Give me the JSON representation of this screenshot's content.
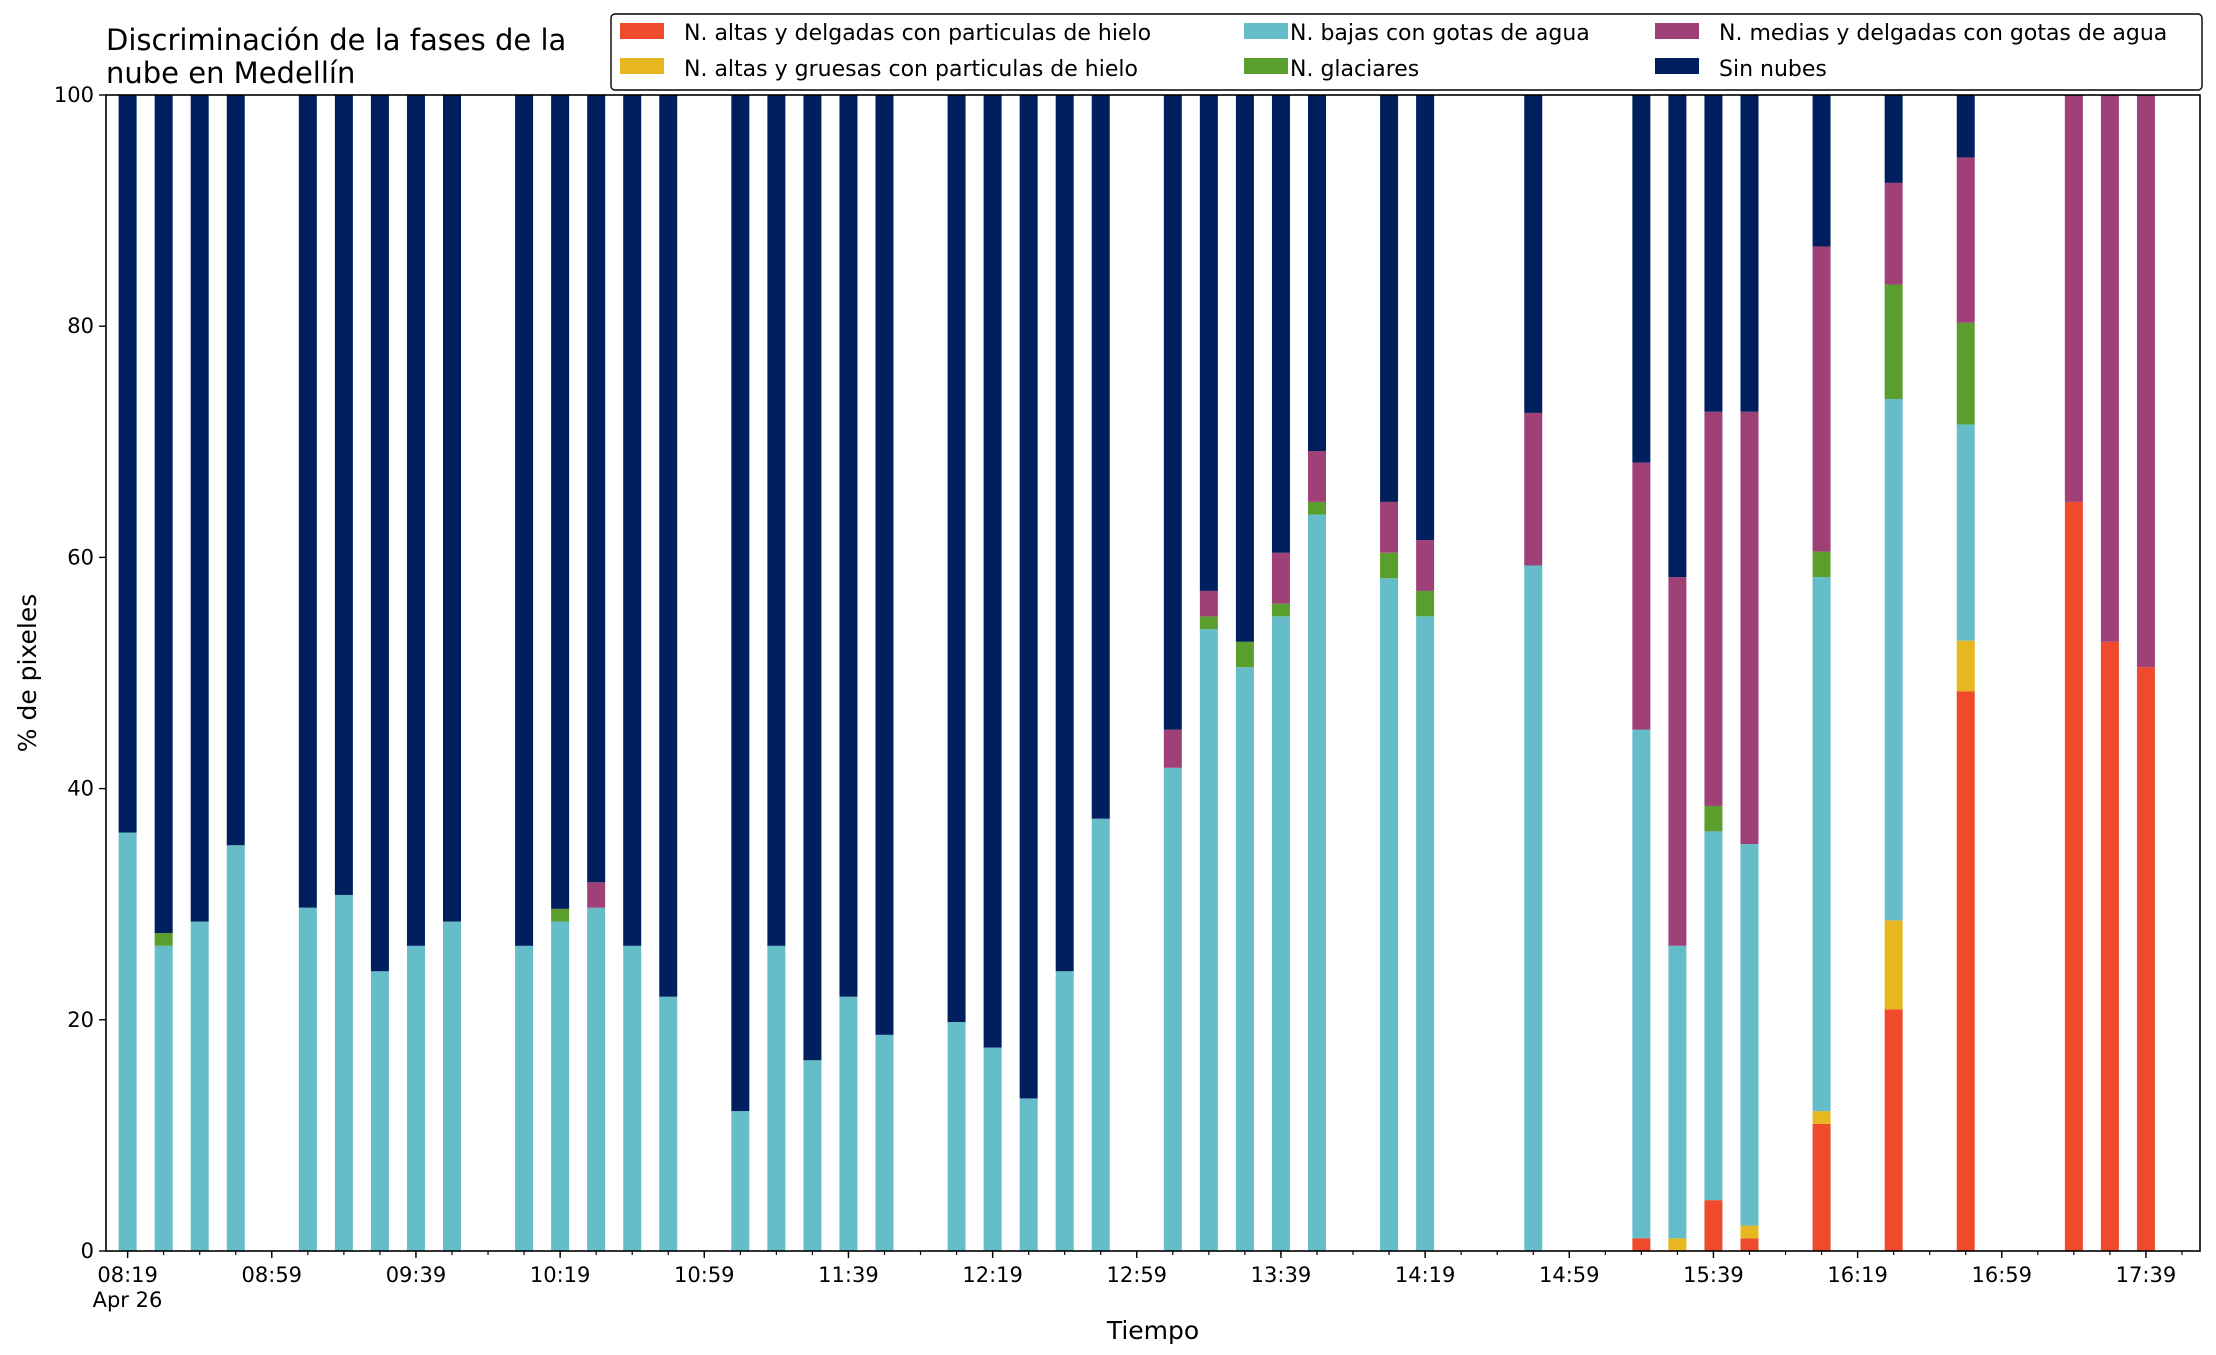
{
  "chart_data": {
    "type": "bar",
    "stacked": true,
    "title_lines": [
      "Discriminación de la fases de la",
      "nube en Medellín"
    ],
    "xlabel": "Tiempo",
    "ylabel": "% de pixeles",
    "ylim": [
      0,
      100
    ],
    "yticks": [
      0,
      20,
      40,
      60,
      80,
      100
    ],
    "xlim": [
      "08:13",
      "17:54"
    ],
    "x_tick_labels": [
      {
        "time": "08:19",
        "label": "08:19",
        "sublabel": "Apr 26"
      },
      {
        "time": "08:59",
        "label": "08:59"
      },
      {
        "time": "09:39",
        "label": "09:39"
      },
      {
        "time": "10:19",
        "label": "10:19"
      },
      {
        "time": "10:59",
        "label": "10:59"
      },
      {
        "time": "11:39",
        "label": "11:39"
      },
      {
        "time": "12:19",
        "label": "12:19"
      },
      {
        "time": "12:59",
        "label": "12:59"
      },
      {
        "time": "13:39",
        "label": "13:39"
      },
      {
        "time": "14:19",
        "label": "14:19"
      },
      {
        "time": "14:59",
        "label": "14:59"
      },
      {
        "time": "15:39",
        "label": "15:39"
      },
      {
        "time": "16:19",
        "label": "16:19"
      },
      {
        "time": "16:59",
        "label": "16:59"
      },
      {
        "time": "17:39",
        "label": "17:39"
      }
    ],
    "minor_tick_interval_minutes": 10,
    "grid": false,
    "legend_position": "top",
    "legend": [
      {
        "key": "altas_delgadas_hielo",
        "label": "N. altas y delgadas con particulas de hielo",
        "color": "#ee4a2b"
      },
      {
        "key": "altas_gruesas_hielo",
        "label": "N. altas y gruesas con particulas de hielo",
        "color": "#e6b71e"
      },
      {
        "key": "bajas_agua",
        "label": "N. bajas con gotas de agua",
        "color": "#66bdca"
      },
      {
        "key": "glaciares",
        "label": "N. glaciares",
        "color": "#5a9f2e"
      },
      {
        "key": "medias_delgadas_agua",
        "label": "N. medias y delgadas con gotas de agua",
        "color": "#9f4077"
      },
      {
        "key": "sin_nubes",
        "label": "Sin nubes",
        "color": "#001f5e"
      }
    ],
    "series_order": [
      "altas_delgadas_hielo",
      "altas_gruesas_hielo",
      "bajas_agua",
      "glaciares",
      "medias_delgadas_agua",
      "sin_nubes"
    ],
    "bars": [
      {
        "time": "08:19",
        "altas_delgadas_hielo": 0,
        "altas_gruesas_hielo": 0,
        "bajas_agua": 36.2,
        "glaciares": 0,
        "medias_delgadas_agua": 0,
        "sin_nubes": 63.8
      },
      {
        "time": "08:29",
        "altas_delgadas_hielo": 0,
        "altas_gruesas_hielo": 0,
        "bajas_agua": 26.4,
        "glaciares": 1.1,
        "medias_delgadas_agua": 0,
        "sin_nubes": 72.5
      },
      {
        "time": "08:39",
        "altas_delgadas_hielo": 0,
        "altas_gruesas_hielo": 0,
        "bajas_agua": 28.5,
        "glaciares": 0,
        "medias_delgadas_agua": 0,
        "sin_nubes": 71.5
      },
      {
        "time": "08:49",
        "altas_delgadas_hielo": 0,
        "altas_gruesas_hielo": 0,
        "bajas_agua": 35.1,
        "glaciares": 0,
        "medias_delgadas_agua": 0,
        "sin_nubes": 64.9
      },
      {
        "time": "09:09",
        "altas_delgadas_hielo": 0,
        "altas_gruesas_hielo": 0,
        "bajas_agua": 29.7,
        "glaciares": 0,
        "medias_delgadas_agua": 0,
        "sin_nubes": 70.3
      },
      {
        "time": "09:19",
        "altas_delgadas_hielo": 0,
        "altas_gruesas_hielo": 0,
        "bajas_agua": 30.8,
        "glaciares": 0,
        "medias_delgadas_agua": 0,
        "sin_nubes": 69.2
      },
      {
        "time": "09:29",
        "altas_delgadas_hielo": 0,
        "altas_gruesas_hielo": 0,
        "bajas_agua": 24.2,
        "glaciares": 0,
        "medias_delgadas_agua": 0,
        "sin_nubes": 75.8
      },
      {
        "time": "09:39",
        "altas_delgadas_hielo": 0,
        "altas_gruesas_hielo": 0,
        "bajas_agua": 26.4,
        "glaciares": 0,
        "medias_delgadas_agua": 0,
        "sin_nubes": 73.6
      },
      {
        "time": "09:49",
        "altas_delgadas_hielo": 0,
        "altas_gruesas_hielo": 0,
        "bajas_agua": 28.5,
        "glaciares": 0,
        "medias_delgadas_agua": 0,
        "sin_nubes": 71.5
      },
      {
        "time": "10:09",
        "altas_delgadas_hielo": 0,
        "altas_gruesas_hielo": 0,
        "bajas_agua": 26.4,
        "glaciares": 0,
        "medias_delgadas_agua": 0,
        "sin_nubes": 73.6
      },
      {
        "time": "10:19",
        "altas_delgadas_hielo": 0,
        "altas_gruesas_hielo": 0,
        "bajas_agua": 28.5,
        "glaciares": 1.1,
        "medias_delgadas_agua": 0,
        "sin_nubes": 70.4
      },
      {
        "time": "10:29",
        "altas_delgadas_hielo": 0,
        "altas_gruesas_hielo": 0,
        "bajas_agua": 29.7,
        "glaciares": 0,
        "medias_delgadas_agua": 2.2,
        "sin_nubes": 68.1
      },
      {
        "time": "10:39",
        "altas_delgadas_hielo": 0,
        "altas_gruesas_hielo": 0,
        "bajas_agua": 26.4,
        "glaciares": 0,
        "medias_delgadas_agua": 0,
        "sin_nubes": 73.6
      },
      {
        "time": "10:49",
        "altas_delgadas_hielo": 0,
        "altas_gruesas_hielo": 0,
        "bajas_agua": 22.0,
        "glaciares": 0,
        "medias_delgadas_agua": 0,
        "sin_nubes": 78.0
      },
      {
        "time": "11:09",
        "altas_delgadas_hielo": 0,
        "altas_gruesas_hielo": 0,
        "bajas_agua": 12.1,
        "glaciares": 0,
        "medias_delgadas_agua": 0,
        "sin_nubes": 87.9
      },
      {
        "time": "11:19",
        "altas_delgadas_hielo": 0,
        "altas_gruesas_hielo": 0,
        "bajas_agua": 26.4,
        "glaciares": 0,
        "medias_delgadas_agua": 0,
        "sin_nubes": 73.6
      },
      {
        "time": "11:29",
        "altas_delgadas_hielo": 0,
        "altas_gruesas_hielo": 0,
        "bajas_agua": 16.5,
        "glaciares": 0,
        "medias_delgadas_agua": 0,
        "sin_nubes": 83.5
      },
      {
        "time": "11:39",
        "altas_delgadas_hielo": 0,
        "altas_gruesas_hielo": 0,
        "bajas_agua": 22.0,
        "glaciares": 0,
        "medias_delgadas_agua": 0,
        "sin_nubes": 78.0
      },
      {
        "time": "11:49",
        "altas_delgadas_hielo": 0,
        "altas_gruesas_hielo": 0,
        "bajas_agua": 18.7,
        "glaciares": 0,
        "medias_delgadas_agua": 0,
        "sin_nubes": 81.3
      },
      {
        "time": "12:09",
        "altas_delgadas_hielo": 0,
        "altas_gruesas_hielo": 0,
        "bajas_agua": 19.8,
        "glaciares": 0,
        "medias_delgadas_agua": 0,
        "sin_nubes": 80.2
      },
      {
        "time": "12:19",
        "altas_delgadas_hielo": 0,
        "altas_gruesas_hielo": 0,
        "bajas_agua": 17.6,
        "glaciares": 0,
        "medias_delgadas_agua": 0,
        "sin_nubes": 82.4
      },
      {
        "time": "12:29",
        "altas_delgadas_hielo": 0,
        "altas_gruesas_hielo": 0,
        "bajas_agua": 13.2,
        "glaciares": 0,
        "medias_delgadas_agua": 0,
        "sin_nubes": 86.8
      },
      {
        "time": "12:39",
        "altas_delgadas_hielo": 0,
        "altas_gruesas_hielo": 0,
        "bajas_agua": 24.2,
        "glaciares": 0,
        "medias_delgadas_agua": 0,
        "sin_nubes": 75.8
      },
      {
        "time": "12:49",
        "altas_delgadas_hielo": 0,
        "altas_gruesas_hielo": 0,
        "bajas_agua": 37.4,
        "glaciares": 0,
        "medias_delgadas_agua": 0,
        "sin_nubes": 62.6
      },
      {
        "time": "13:09",
        "altas_delgadas_hielo": 0,
        "altas_gruesas_hielo": 0,
        "bajas_agua": 41.8,
        "glaciares": 0,
        "medias_delgadas_agua": 3.3,
        "sin_nubes": 54.9
      },
      {
        "time": "13:19",
        "altas_delgadas_hielo": 0,
        "altas_gruesas_hielo": 0,
        "bajas_agua": 53.8,
        "glaciares": 1.1,
        "medias_delgadas_agua": 2.2,
        "sin_nubes": 42.9
      },
      {
        "time": "13:29",
        "altas_delgadas_hielo": 0,
        "altas_gruesas_hielo": 0,
        "bajas_agua": 50.5,
        "glaciares": 2.2,
        "medias_delgadas_agua": 0,
        "sin_nubes": 47.3
      },
      {
        "time": "13:39",
        "altas_delgadas_hielo": 0,
        "altas_gruesas_hielo": 0,
        "bajas_agua": 54.9,
        "glaciares": 1.1,
        "medias_delgadas_agua": 4.4,
        "sin_nubes": 39.6
      },
      {
        "time": "13:49",
        "altas_delgadas_hielo": 0,
        "altas_gruesas_hielo": 0,
        "bajas_agua": 63.7,
        "glaciares": 1.1,
        "medias_delgadas_agua": 4.4,
        "sin_nubes": 30.8
      },
      {
        "time": "14:09",
        "altas_delgadas_hielo": 0,
        "altas_gruesas_hielo": 0,
        "bajas_agua": 58.2,
        "glaciares": 2.2,
        "medias_delgadas_agua": 4.4,
        "sin_nubes": 35.2
      },
      {
        "time": "14:19",
        "altas_delgadas_hielo": 0,
        "altas_gruesas_hielo": 0,
        "bajas_agua": 54.9,
        "glaciares": 2.2,
        "medias_delgadas_agua": 4.4,
        "sin_nubes": 38.5
      },
      {
        "time": "14:49",
        "altas_delgadas_hielo": 0,
        "altas_gruesas_hielo": 0,
        "bajas_agua": 59.3,
        "glaciares": 0,
        "medias_delgadas_agua": 13.2,
        "sin_nubes": 27.5
      },
      {
        "time": "15:19",
        "altas_delgadas_hielo": 1.1,
        "altas_gruesas_hielo": 0,
        "bajas_agua": 44.0,
        "glaciares": 0,
        "medias_delgadas_agua": 23.1,
        "sin_nubes": 31.8
      },
      {
        "time": "15:29",
        "altas_delgadas_hielo": 0,
        "altas_gruesas_hielo": 1.1,
        "bajas_agua": 25.3,
        "glaciares": 0,
        "medias_delgadas_agua": 31.9,
        "sin_nubes": 41.7
      },
      {
        "time": "15:39",
        "altas_delgadas_hielo": 4.4,
        "altas_gruesas_hielo": 0,
        "bajas_agua": 31.9,
        "glaciares": 2.2,
        "medias_delgadas_agua": 34.1,
        "sin_nubes": 27.4
      },
      {
        "time": "15:49",
        "altas_delgadas_hielo": 1.1,
        "altas_gruesas_hielo": 1.1,
        "bajas_agua": 33.0,
        "glaciares": 0,
        "medias_delgadas_agua": 37.4,
        "sin_nubes": 27.4
      },
      {
        "time": "16:09",
        "altas_delgadas_hielo": 11.0,
        "altas_gruesas_hielo": 1.1,
        "bajas_agua": 46.2,
        "glaciares": 2.2,
        "medias_delgadas_agua": 26.4,
        "sin_nubes": 13.1
      },
      {
        "time": "16:29",
        "altas_delgadas_hielo": 20.9,
        "altas_gruesas_hielo": 7.7,
        "bajas_agua": 45.1,
        "glaciares": 9.9,
        "medias_delgadas_agua": 8.8,
        "sin_nubes": 7.6
      },
      {
        "time": "16:49",
        "altas_delgadas_hielo": 48.4,
        "altas_gruesas_hielo": 4.4,
        "bajas_agua": 18.7,
        "glaciares": 8.8,
        "medias_delgadas_agua": 14.3,
        "sin_nubes": 5.4
      },
      {
        "time": "17:19",
        "altas_delgadas_hielo": 64.8,
        "altas_gruesas_hielo": 0,
        "bajas_agua": 0,
        "glaciares": 0,
        "medias_delgadas_agua": 35.2,
        "sin_nubes": 0
      },
      {
        "time": "17:29",
        "altas_delgadas_hielo": 52.7,
        "altas_gruesas_hielo": 0,
        "bajas_agua": 0,
        "glaciares": 0,
        "medias_delgadas_agua": 47.3,
        "sin_nubes": 0
      },
      {
        "time": "17:39",
        "altas_delgadas_hielo": 50.5,
        "altas_gruesas_hielo": 0,
        "bajas_agua": 0,
        "glaciares": 0,
        "medias_delgadas_agua": 49.5,
        "sin_nubes": 0
      }
    ]
  }
}
